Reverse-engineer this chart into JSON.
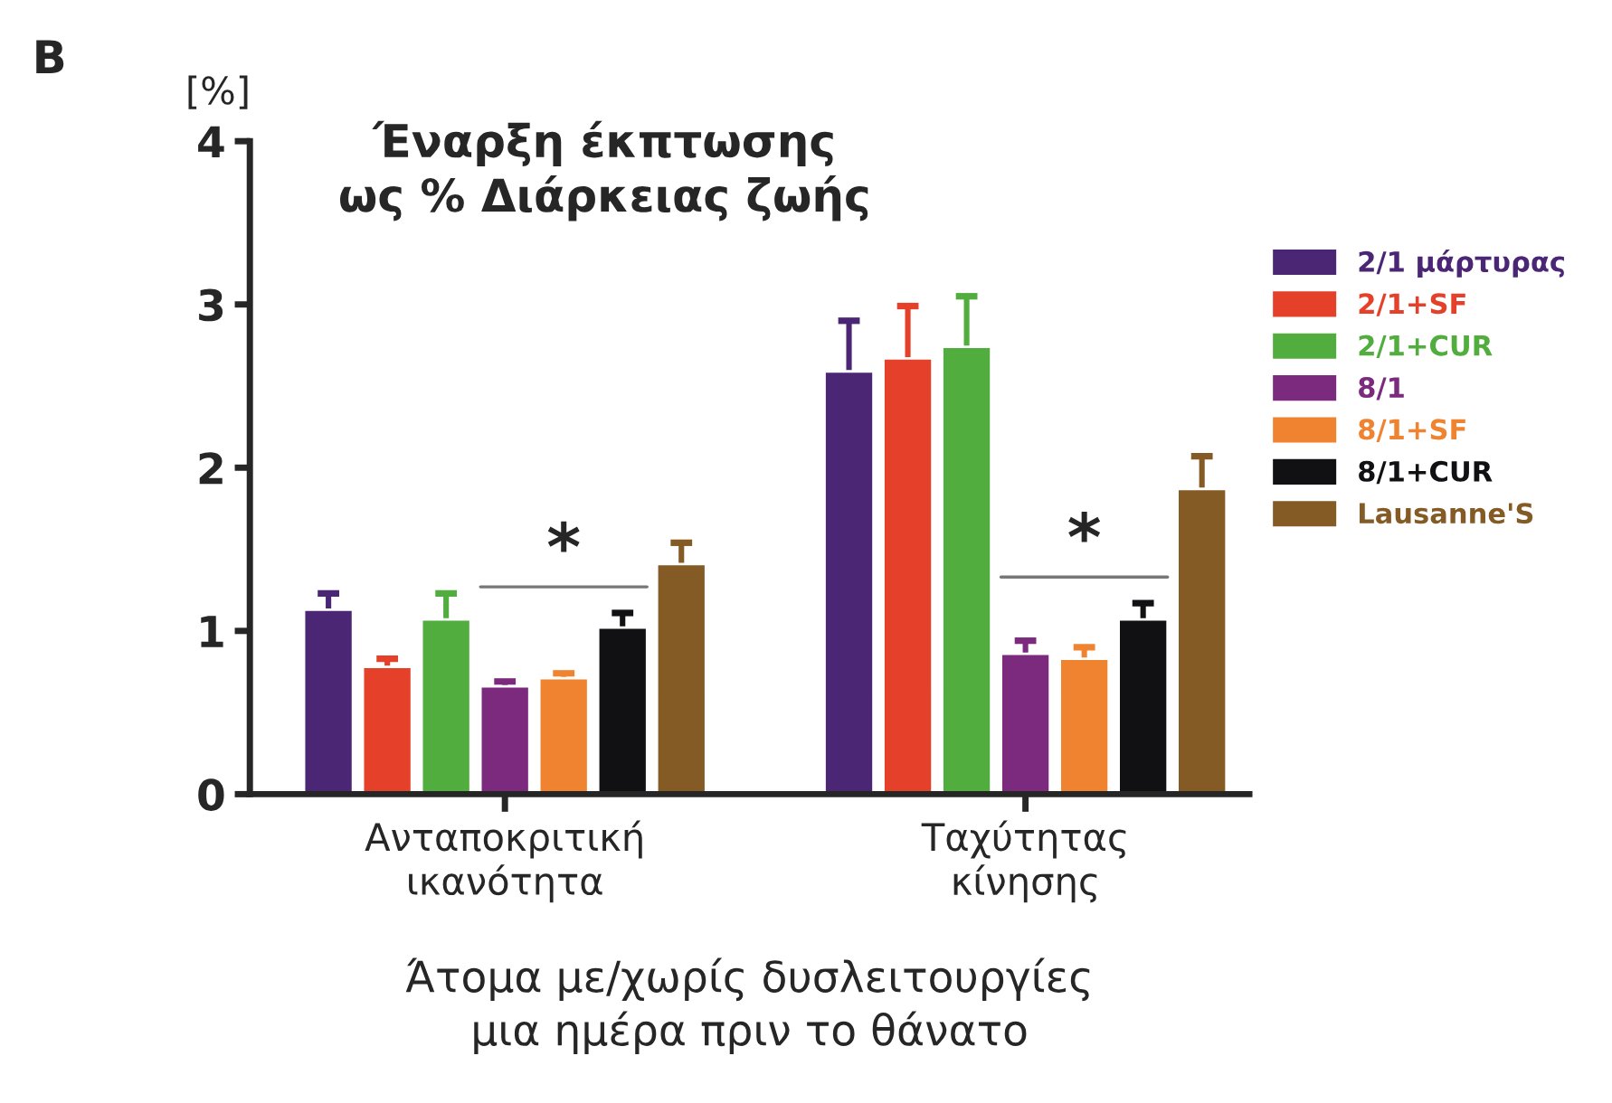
{
  "chart_data": {
    "type": "bar",
    "title": "Έναρξη έκπτωσης\nως % Διάρκειας ζωής",
    "ylabel": "[%]",
    "xlabel": "Άτομα με/χωρίς δυσλειτουργίες\nμια ημέρα πριν το θάνατο",
    "categories": [
      "Ανταποκριτική\nικανότητα",
      "Ταχύτητας\nκίνησης"
    ],
    "series": [
      {
        "name": "2/1 μάρτυρας",
        "color": "#4b2675",
        "values": [
          1.13,
          2.59
        ],
        "errors": [
          [
            1.13,
            1.23
          ],
          [
            2.59,
            2.9
          ]
        ]
      },
      {
        "name": "2/1+SF",
        "color": "#e5412a",
        "values": [
          0.78,
          2.67
        ],
        "errors": [
          [
            0.78,
            0.83
          ],
          [
            2.67,
            2.99
          ]
        ]
      },
      {
        "name": "2/1+CUR",
        "color": "#50ad3e",
        "values": [
          1.07,
          2.74
        ],
        "errors": [
          [
            1.07,
            1.23
          ],
          [
            2.74,
            3.05
          ]
        ]
      },
      {
        "name": "8/1",
        "color": "#7b2a7e",
        "values": [
          0.66,
          0.86
        ],
        "errors": [
          [
            0.66,
            0.69
          ],
          [
            0.86,
            0.94
          ]
        ]
      },
      {
        "name": "8/1+SF",
        "color": "#ef8330",
        "values": [
          0.71,
          0.83
        ],
        "errors": [
          [
            0.71,
            0.74
          ],
          [
            0.83,
            0.9
          ]
        ]
      },
      {
        "name": "8/1+CUR",
        "color": "#111013",
        "values": [
          1.02,
          1.07
        ],
        "errors": [
          [
            1.02,
            1.11
          ],
          [
            1.07,
            1.17
          ]
        ]
      },
      {
        "name": "Lausanne'S",
        "color": "#845a25",
        "values": [
          1.41,
          1.87
        ],
        "errors": [
          [
            1.41,
            1.54
          ],
          [
            1.87,
            2.07
          ]
        ]
      }
    ],
    "ylim": [
      0,
      4
    ],
    "yticks": [
      0,
      1,
      2,
      3,
      4
    ],
    "grid": false,
    "legend": "right",
    "annotations": [
      "B",
      "*",
      "*"
    ]
  }
}
